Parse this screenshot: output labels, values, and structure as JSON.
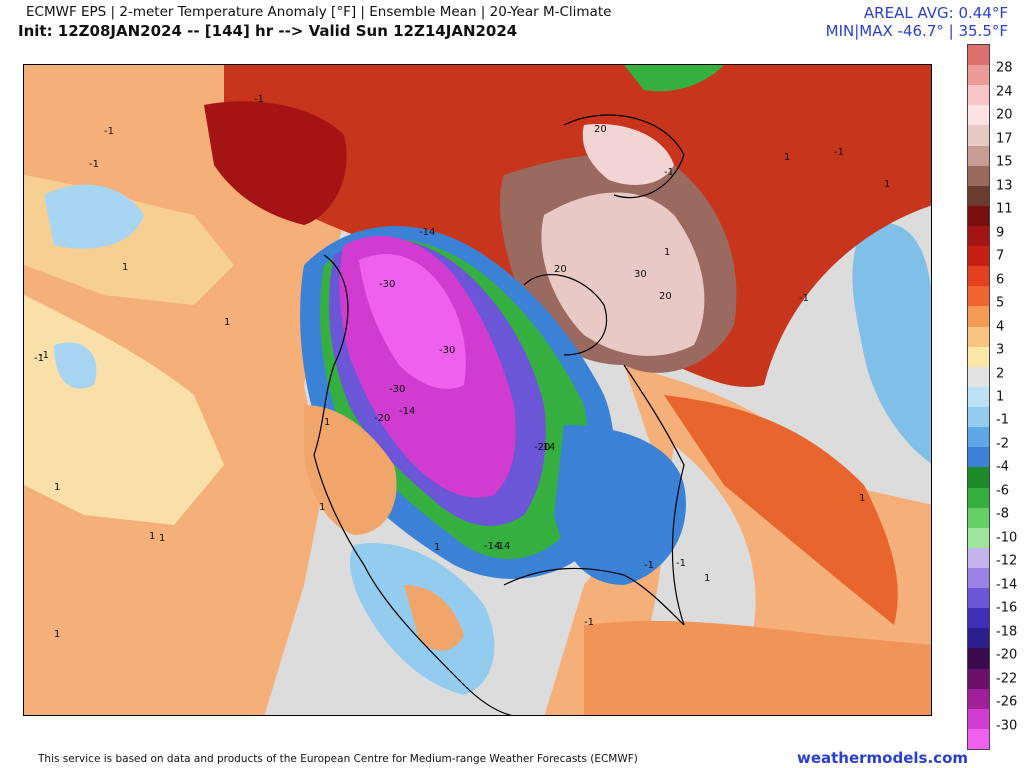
{
  "header": {
    "title_line": "ECMWF EPS | 2-meter Temperature Anomaly [°F] | Ensemble Mean | 20-Year M-Climate",
    "init_line": "Init: 12Z08JAN2024 -- [144] hr --> Valid Sun 12Z14JAN2024",
    "areal_avg": "AREAL AVG: 0.44°F",
    "min_max": "MIN|MAX -46.7° | 35.5°F"
  },
  "colorbar": {
    "labels": [
      "28",
      "24",
      "20",
      "17",
      "15",
      "13",
      "11",
      "9",
      "7",
      "6",
      "5",
      "4",
      "3",
      "2",
      "1",
      "-1",
      "-2",
      "-4",
      "-6",
      "-8",
      "-10",
      "-12",
      "-14",
      "-16",
      "-18",
      "-20",
      "-22",
      "-26",
      "-30"
    ],
    "colors": [
      "#e07070",
      "#ed9a9a",
      "#f6c6c6",
      "#fbe3e3",
      "#e9c9c5",
      "#c79c94",
      "#9a6a60",
      "#6b3b30",
      "#7a0f0f",
      "#a51414",
      "#c71f15",
      "#e2401f",
      "#f0652e",
      "#f59a55",
      "#f9c47f",
      "#fbe8a6",
      "#e3e3e3",
      "#bde1f5",
      "#94ccef",
      "#5fa8e6",
      "#3b82d6",
      "#1d8a2a",
      "#35b040",
      "#66cf66",
      "#9ee39e",
      "#c6b4ee",
      "#9a82e6",
      "#6a56d6",
      "#4030b8",
      "#2b1f8e",
      "#3a0a4e",
      "#6a0f6a",
      "#a0209a",
      "#d03ccf",
      "#f060ef"
    ]
  },
  "map": {
    "contour_labels": [
      "-1",
      "-1",
      "1",
      "-1",
      "-1",
      "1",
      "1",
      "1",
      "-1",
      "-30",
      "-30",
      "-30",
      "-20",
      "-14",
      "-14",
      "-20",
      "-14",
      "20",
      "20",
      "20",
      "30",
      "-1",
      "1",
      "1",
      "1",
      "-1",
      "1",
      "1",
      "-1",
      "1",
      "1",
      "-14",
      "-1",
      "1",
      "-1",
      "-1",
      "-14",
      "1",
      "1"
    ]
  },
  "footer": {
    "attribution": "This service is based on data and products of the European Centre for Medium-range Weather Forecasts (ECMWF)",
    "brand": "weathermodels.com"
  }
}
